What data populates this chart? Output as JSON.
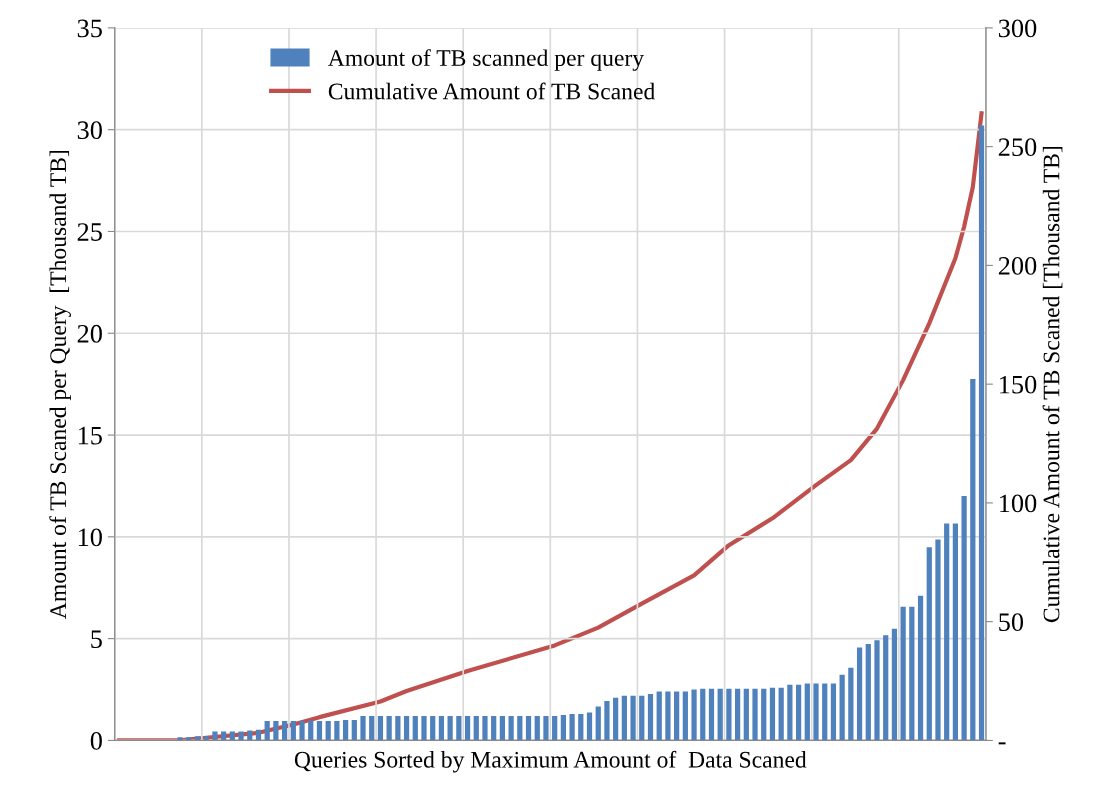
{
  "chart_data": {
    "type": "bar",
    "xlabel": "Queries Sorted by Maximum Amount of  Data Scaned",
    "ylabel": "Amount of TB Scaned per Query  [Thousand TB]",
    "y2label": "Cumulative Amount of TB Scaned [Thousand TB]",
    "categories": [
      null,
      null,
      null,
      null,
      null,
      null,
      null,
      null,
      null,
      null,
      null,
      null,
      null,
      null,
      null,
      null,
      null,
      null,
      null,
      null,
      null,
      null,
      null,
      null,
      null,
      null,
      null,
      null,
      null,
      null,
      null,
      null,
      null,
      null,
      null,
      null,
      null,
      null,
      null,
      null,
      null,
      null,
      null,
      null,
      null,
      null,
      null,
      null,
      null,
      null,
      null,
      null,
      null,
      null,
      null,
      null,
      null,
      null,
      null,
      null,
      null,
      null,
      null,
      null,
      null,
      null,
      null,
      null,
      null,
      null,
      null,
      null,
      null,
      null,
      null,
      null,
      null,
      null,
      null,
      null,
      null,
      null,
      null,
      null,
      null,
      null,
      null,
      null,
      null,
      null,
      null,
      null,
      null,
      null,
      null,
      null,
      null,
      null,
      null,
      null
    ],
    "series": [
      {
        "name": "Amount of TB scanned per query",
        "color": "#4f81bd",
        "values": [
          0,
          0,
          0,
          0,
          0,
          0,
          0,
          0.15,
          0.15,
          0.2,
          0.2,
          0.44,
          0.44,
          0.44,
          0.44,
          0.49,
          0.52,
          0.95,
          0.95,
          0.95,
          0.95,
          0.95,
          0.98,
          0.95,
          0.95,
          0.95,
          1.0,
          1.0,
          1.2,
          1.2,
          1.2,
          1.2,
          1.2,
          1.2,
          1.2,
          1.2,
          1.2,
          1.2,
          1.2,
          1.2,
          1.2,
          1.2,
          1.2,
          1.2,
          1.2,
          1.2,
          1.2,
          1.2,
          1.2,
          1.2,
          1.2,
          1.25,
          1.3,
          1.3,
          1.37,
          1.67,
          1.93,
          2.1,
          2.2,
          2.2,
          2.2,
          2.28,
          2.4,
          2.4,
          2.4,
          2.4,
          2.5,
          2.54,
          2.54,
          2.54,
          2.54,
          2.54,
          2.54,
          2.54,
          2.54,
          2.59,
          2.59,
          2.74,
          2.74,
          2.8,
          2.8,
          2.8,
          2.8,
          3.23,
          3.57,
          4.56,
          4.74,
          4.92,
          5.16,
          5.49,
          6.56,
          6.56,
          7.11,
          9.49,
          9.87,
          10.66,
          10.66,
          12.0,
          17.75,
          30.2
        ]
      },
      {
        "name": "Cumulative Amount of TB Scaned",
        "type": "line",
        "axis": "y2",
        "color": "#c0504d",
        "values": [
          0,
          null,
          null,
          null,
          null,
          null,
          null,
          0,
          null,
          null,
          1.1,
          null,
          null,
          null,
          null,
          null,
          3.2,
          null,
          null,
          null,
          6.7,
          null,
          null,
          9.8,
          null,
          null,
          null,
          null,
          null,
          null,
          16.4,
          null,
          null,
          20.8,
          null,
          null,
          null,
          null,
          null,
          null,
          29.2,
          null,
          null,
          null,
          null,
          null,
          null,
          null,
          null,
          null,
          40,
          null,
          null,
          null,
          null,
          47.5,
          null,
          null,
          null,
          null,
          57.6,
          null,
          null,
          null,
          null,
          null,
          69.5,
          null,
          null,
          null,
          82.2,
          null,
          null,
          null,
          null,
          93.5,
          null,
          null,
          null,
          null,
          107.5,
          null,
          null,
          null,
          118,
          null,
          null,
          131.3,
          null,
          null,
          151.7,
          null,
          null,
          175.6,
          null,
          null,
          203,
          216.3,
          233,
          264
        ]
      }
    ],
    "ylim": [
      0,
      35
    ],
    "yticks": [
      0,
      5,
      10,
      15,
      20,
      25,
      30,
      35
    ],
    "y2lim": [
      0,
      300
    ],
    "y2ticks": [
      {
        "value": 0,
        "label": "-"
      },
      50,
      100,
      150,
      200,
      250,
      300
    ],
    "grid": true,
    "legend": "top"
  }
}
